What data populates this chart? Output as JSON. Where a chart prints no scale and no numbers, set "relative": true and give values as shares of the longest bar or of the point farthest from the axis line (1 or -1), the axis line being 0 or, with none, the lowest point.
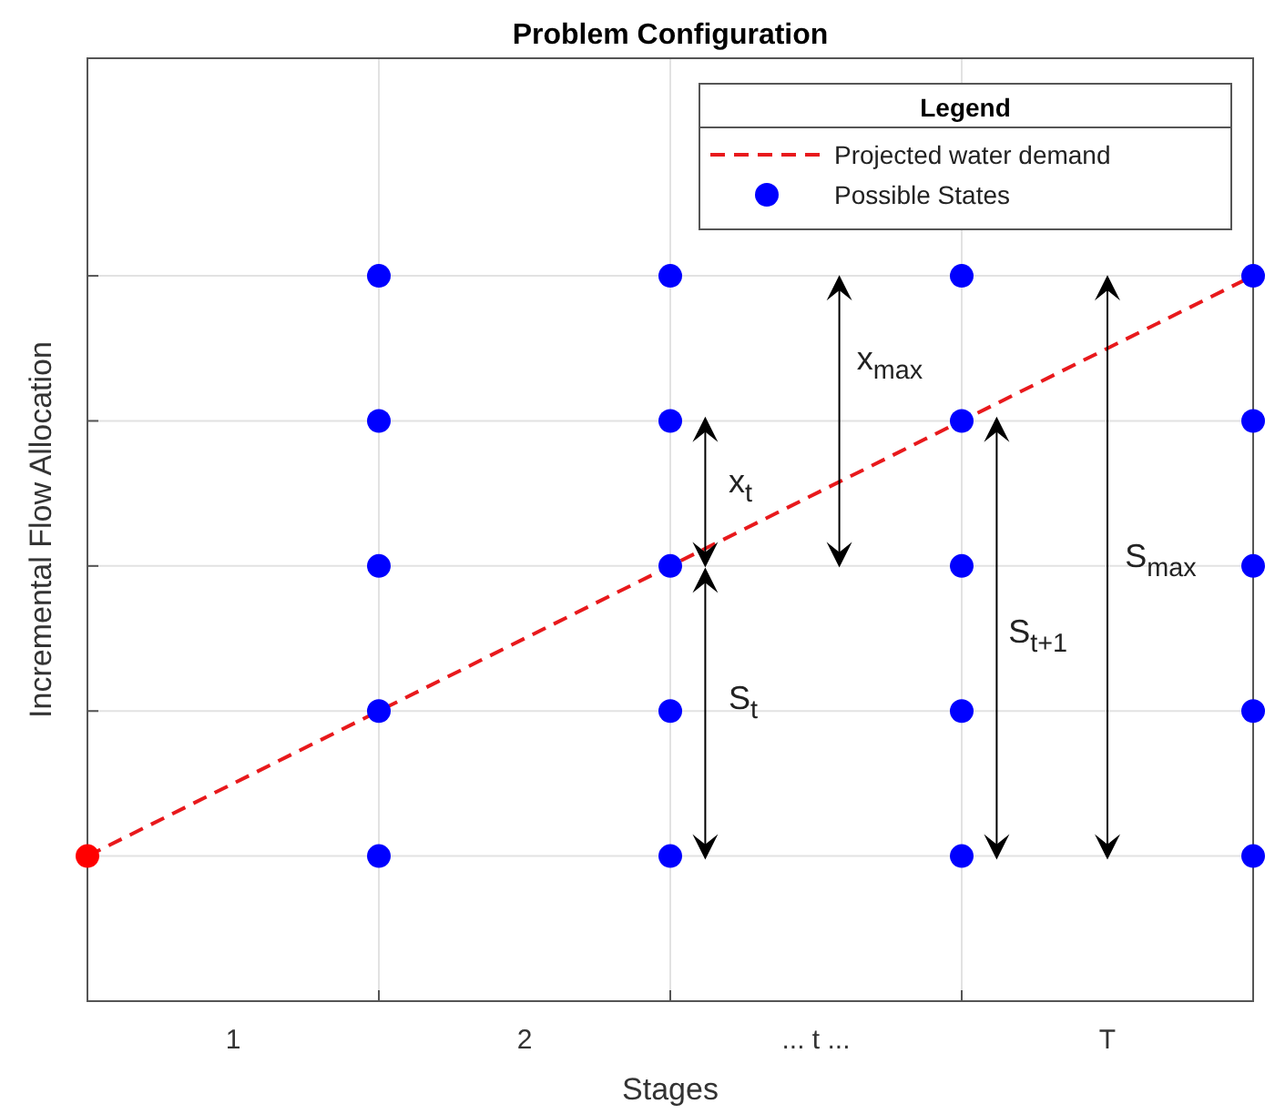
{
  "chart_data": {
    "type": "scatter",
    "title": "Problem Configuration",
    "xlabel": "Stages",
    "ylabel": "Incremental Flow Allocation",
    "legend_title": "Legend",
    "xlim": [
      0,
      4
    ],
    "xticks": [
      {
        "value": 0.5,
        "label": "1"
      },
      {
        "value": 1,
        "label": null
      },
      {
        "value": 1.5,
        "label": "2"
      },
      {
        "value": 2,
        "label": null
      },
      {
        "value": 2.5,
        "label": "... t ..."
      },
      {
        "value": 3,
        "label": null
      },
      {
        "value": 3.5,
        "label": "T"
      }
    ],
    "relative": true,
    "tick_labels": "x",
    "grid": true,
    "legend": "top right",
    "marker": "circle",
    "series": [
      {
        "type": "line",
        "name": "Projected water demand",
        "color": "#e8191c",
        "line_style": "dashed",
        "marker": "none",
        "x": [
          0,
          4
        ],
        "values": [
          0.2,
          1
        ]
      },
      {
        "name": "Possible States",
        "color": "#0000ff",
        "x": [
          1,
          1,
          1,
          1,
          1,
          2,
          2,
          2,
          2,
          2,
          3,
          3,
          3,
          3,
          3,
          4,
          4,
          4,
          4,
          4
        ],
        "values": [
          0.2,
          0.4,
          0.6,
          0.8,
          1,
          0.2,
          0.4,
          0.6,
          0.8,
          1,
          0.2,
          0.4,
          0.6,
          0.8,
          1,
          0.2,
          0.4,
          0.6,
          0.8,
          1
        ]
      },
      {
        "color": "#ff0000",
        "x": [
          0
        ],
        "values": [
          0.2
        ]
      }
    ],
    "annotations": [
      "x$_{t}$",
      "S$_{t}$",
      "x$_{max}$",
      "S$_{t+1}$",
      "S$_{max}$"
    ]
  }
}
